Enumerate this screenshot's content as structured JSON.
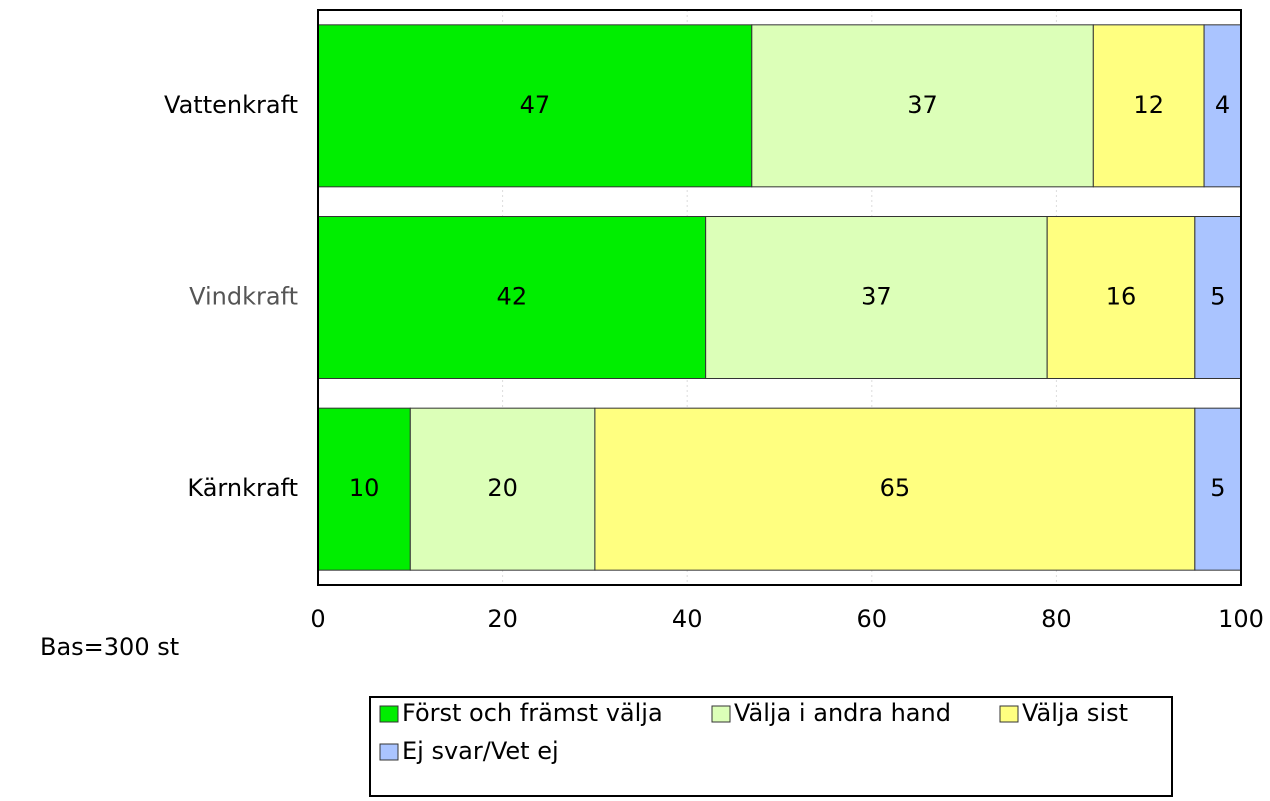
{
  "chart_data": {
    "type": "stacked-barh",
    "categories": [
      "Vattenkraft",
      "Vindkraft",
      "Kärnkraft"
    ],
    "category_colors": [
      "#000000",
      "#555555",
      "#000000"
    ],
    "series": [
      {
        "name": "Först och främst välja",
        "color": "#00ee00",
        "values": [
          47,
          42,
          10
        ]
      },
      {
        "name": "Välja i andra hand",
        "color": "#dcffb8",
        "values": [
          37,
          37,
          20
        ]
      },
      {
        "name": "Välja sist",
        "color": "#ffff80",
        "values": [
          12,
          16,
          65
        ]
      },
      {
        "name": "Ej svar/Vet ej",
        "color": "#aac4ff",
        "values": [
          4,
          5,
          5
        ]
      }
    ],
    "xlim": [
      0,
      100
    ],
    "xticks": [
      0,
      20,
      40,
      60,
      80,
      100
    ],
    "grid": true,
    "annotation": "Bas=300 st"
  }
}
